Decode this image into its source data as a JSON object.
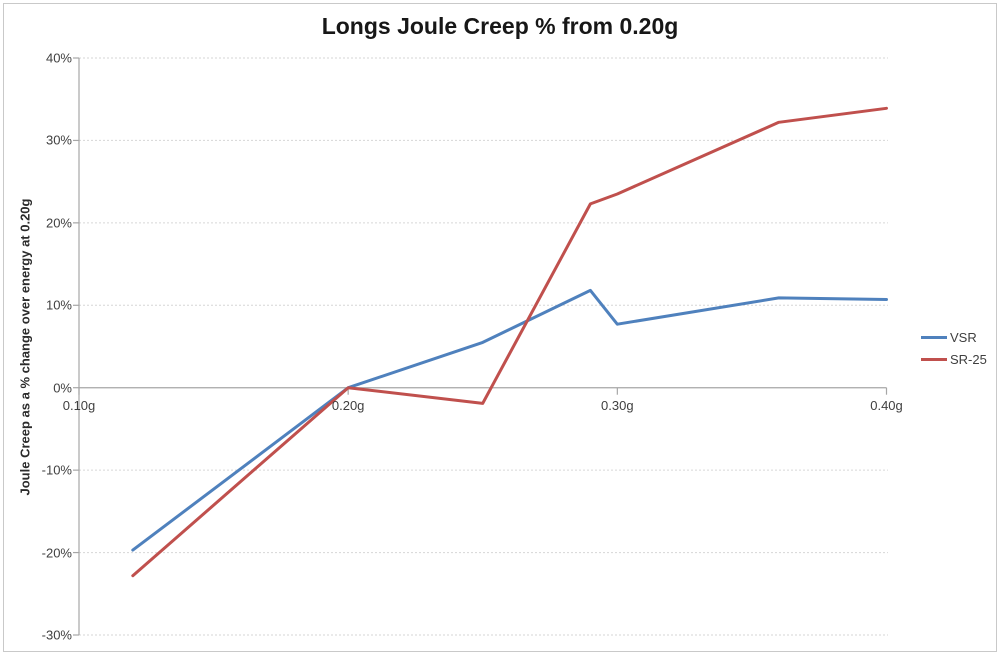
{
  "chart_data": {
    "type": "line",
    "title": "Longs Joule Creep % from 0.20g",
    "xlabel": "",
    "ylabel": "Joule Creep as a % change over energy at 0.20g",
    "xlim": [
      0.1,
      0.4
    ],
    "ylim": [
      -30,
      40
    ],
    "grid": true,
    "legend_position": "right",
    "x_ticks": [
      {
        "v": 0.1,
        "label": "0.10g"
      },
      {
        "v": 0.2,
        "label": "0.20g"
      },
      {
        "v": 0.3,
        "label": "0.30g"
      },
      {
        "v": 0.4,
        "label": "0.40g"
      }
    ],
    "y_ticks": [
      {
        "v": 40,
        "label": "40%"
      },
      {
        "v": 30,
        "label": "30%"
      },
      {
        "v": 20,
        "label": "20%"
      },
      {
        "v": 10,
        "label": "10%"
      },
      {
        "v": 0,
        "label": "0%"
      },
      {
        "v": -10,
        "label": "-10%"
      },
      {
        "v": -20,
        "label": "-20%"
      },
      {
        "v": -30,
        "label": "-30%"
      }
    ],
    "series": [
      {
        "name": "VSR",
        "color": "#4F81BD",
        "x": [
          0.12,
          0.2,
          0.25,
          0.29,
          0.3,
          0.36,
          0.4
        ],
        "values": [
          -19.7,
          0.0,
          5.5,
          11.8,
          7.7,
          10.9,
          10.7
        ]
      },
      {
        "name": "SR-25",
        "color": "#C0504D",
        "x": [
          0.12,
          0.2,
          0.25,
          0.29,
          0.3,
          0.36,
          0.4
        ],
        "values": [
          -22.8,
          0.0,
          -1.9,
          22.3,
          23.5,
          32.2,
          33.9
        ]
      }
    ]
  },
  "theme": {
    "grid_color": "#d6d6d6",
    "axis_color": "#a6a6a6",
    "tick_text_color": "#3f3f3f",
    "title_color": "#171717",
    "background": "#ffffff",
    "border_color": "#c9c9c9"
  }
}
